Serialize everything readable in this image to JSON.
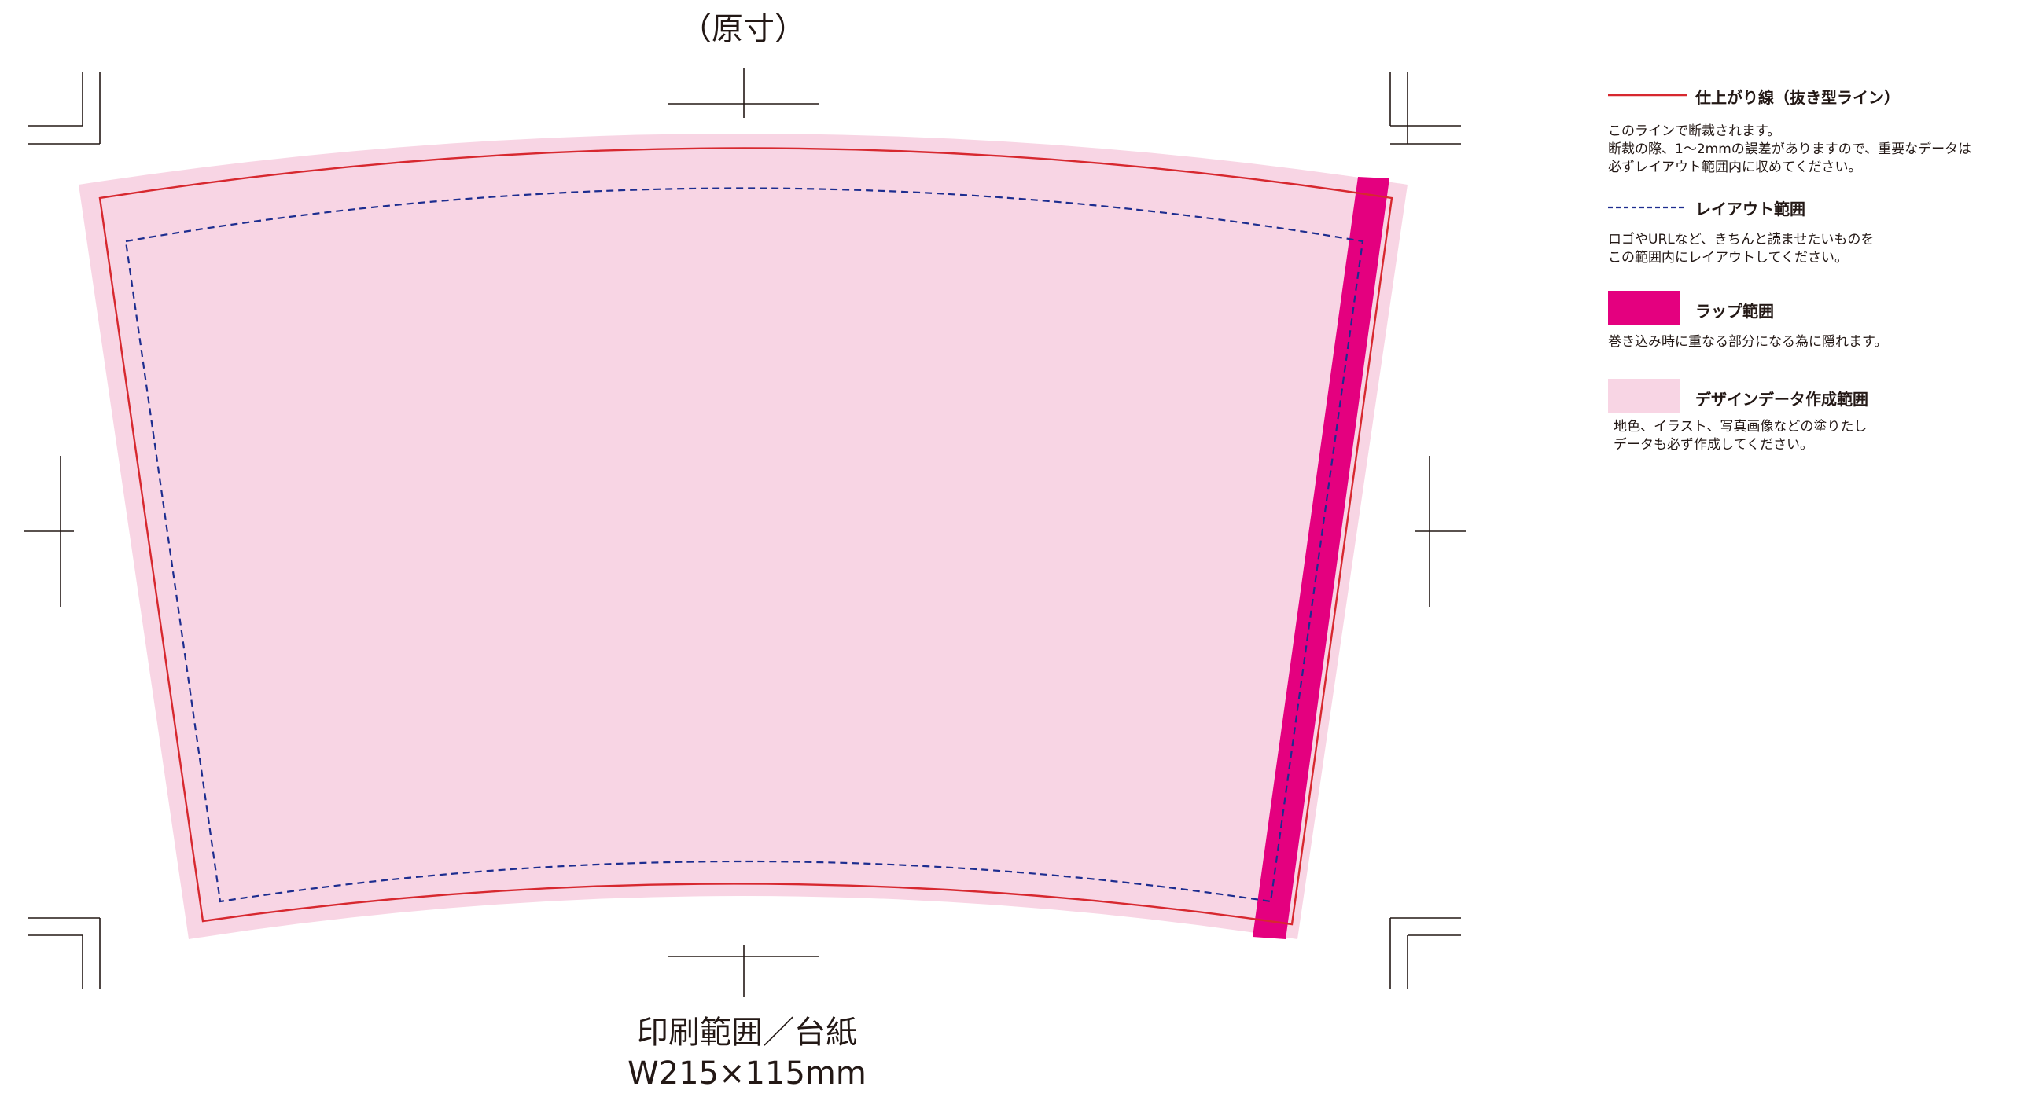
{
  "header": {
    "title": "（原寸）"
  },
  "caption": {
    "line1": "印刷範囲／台紙",
    "line2": "W215×115mm"
  },
  "colors": {
    "cut_line": "#d7282f",
    "layout_line": "#1d2d8f",
    "wrap_area": "#e4007f",
    "design_area": "#f8d5e4",
    "crop_marks": "#231815"
  },
  "legend": {
    "cut_line": {
      "title": "仕上がり線（抜き型ライン）",
      "desc": "このラインで断裁されます。\n断裁の際、1～2mmの誤差がありますので、重要なデータは\n必ずレイアウト範囲内に収めてください。"
    },
    "layout": {
      "title": "レイアウト範囲",
      "desc": "ロゴやURLなど、きちんと読ませたいものを\nこの範囲内にレイアウトしてください。"
    },
    "wrap": {
      "title": "ラップ範囲",
      "desc": "巻き込み時に重なる部分になる為に隠れます。"
    },
    "design": {
      "title": "デザインデータ作成範囲",
      "desc": "地色、イラスト、写真画像などの塗りたし\nデータも必ず作成してください。"
    }
  }
}
